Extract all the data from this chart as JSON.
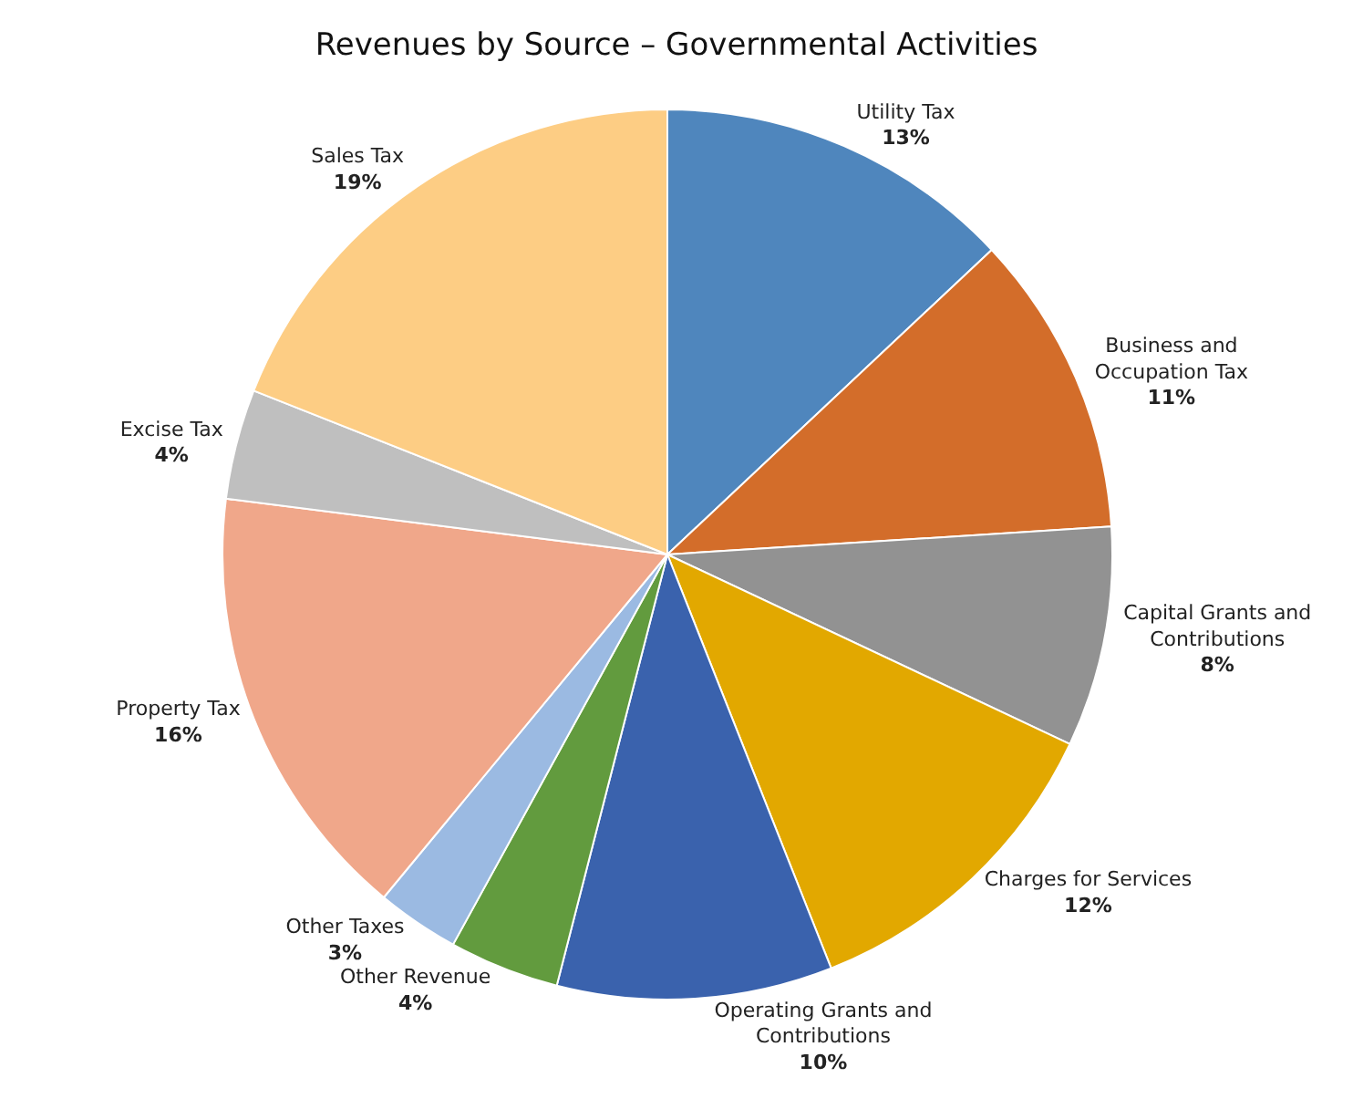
{
  "chart_data": {
    "type": "pie",
    "title": "Revenues by Source – Governmental Activities",
    "categories": [
      "Utility Tax",
      "Business and Occupation Tax",
      "Capital Grants and Contributions",
      "Charges for Services",
      "Operating Grants and Contributions",
      "Other Revenue",
      "Other Taxes",
      "Property Tax",
      "Excise Tax",
      "Sales Tax"
    ],
    "values": [
      13,
      11,
      8,
      12,
      10,
      4,
      3,
      16,
      4,
      19
    ],
    "value_labels": [
      "13%",
      "11%",
      "8%",
      "12%",
      "10%",
      "4%",
      "3%",
      "16%",
      "4%",
      "19%"
    ],
    "colors": [
      "#4f86bd",
      "#d36d2a",
      "#929292",
      "#e2a800",
      "#3a62ad",
      "#629b3e",
      "#9bbae2",
      "#f0a78a",
      "#bfbfbf",
      "#fdcd84"
    ],
    "legend": false
  }
}
